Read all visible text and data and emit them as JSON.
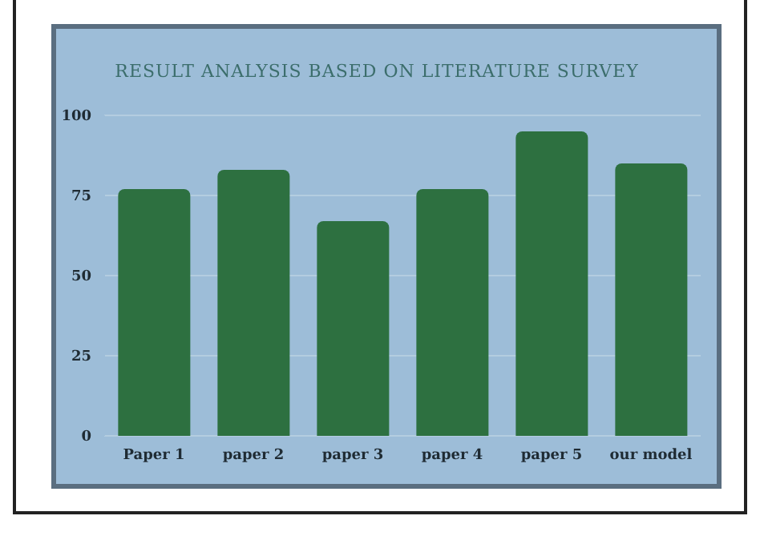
{
  "chart_data": {
    "type": "bar",
    "title": "RESULT ANALYSIS BASED ON LITERATURE SURVEY",
    "categories": [
      "Paper 1",
      "paper 2",
      "paper 3",
      "paper 4",
      "paper 5",
      "our model"
    ],
    "values": [
      77,
      83,
      67,
      77,
      95,
      85
    ],
    "color": "#2d7040",
    "ylim": [
      0,
      100
    ],
    "yticks": [
      0,
      25,
      50,
      75,
      100
    ],
    "grid": "y"
  }
}
